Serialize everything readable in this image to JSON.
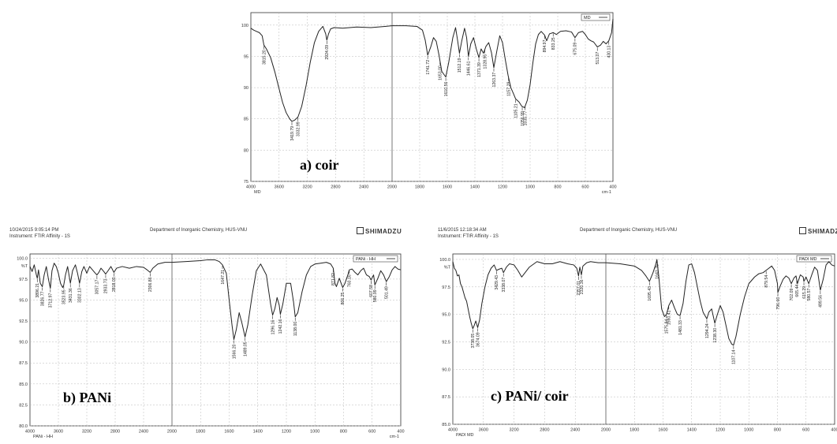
{
  "charts": {
    "a": {
      "legend": "MD",
      "label": "a) coir",
      "axis_left_caption": "",
      "axis_bottom_caption": "cm-1",
      "corner_caption": "MD"
    },
    "b": {
      "timestamp": "10/24/2015 9:05:14 PM",
      "instrument": "Instrument: FTIR Affinity - 1S",
      "department": "Department of Inorganic Chemistry, HUS-VNU",
      "brand": "SHIMADZU",
      "legend": "PANi - HH",
      "label": "b) PANi",
      "axis_left_caption": "%T",
      "axis_bottom_caption": "cm-1",
      "corner_caption": "PANi - HH"
    },
    "c": {
      "timestamp": "11/6/2015 12:18:34 AM",
      "instrument": "Instrument: FTIR Affinity - 1S",
      "department": "Department of Inorganic Chemistry, HUS-VNU",
      "brand": "SHIMADZ",
      "legend": "PADI MD",
      "label": "c) PANi/ coir",
      "axis_left_caption": "%T",
      "axis_bottom_caption": "",
      "corner_caption": "PADI MD"
    }
  },
  "chart_data": [
    {
      "type": "line",
      "xlabel": "cm-1",
      "ylabel": "",
      "xlim": [
        4000,
        400
      ],
      "ylim": [
        75,
        102
      ],
      "x_ticks": [
        4000,
        3600,
        3200,
        2800,
        2400,
        2000,
        1800,
        1600,
        1400,
        1200,
        1000,
        800,
        600,
        400
      ],
      "y_ticks": [
        75,
        80,
        85,
        90,
        95,
        100
      ],
      "y_tick_labels": [
        "75",
        "80",
        "85",
        "90",
        "95",
        "100"
      ],
      "series": [
        {
          "name": "MD",
          "x": [
            4000,
            3960,
            3920,
            3880,
            3840,
            3815,
            3780,
            3720,
            3660,
            3600,
            3550,
            3500,
            3450,
            3420,
            3380,
            3333,
            3280,
            3220,
            3160,
            3100,
            3040,
            2980,
            2940,
            2924,
            2900,
            2870,
            2820,
            2700,
            2500,
            2300,
            2100,
            2000,
            1900,
            1820,
            1780,
            1760,
            1742,
            1720,
            1700,
            1680,
            1660,
            1640,
            1611,
            1590,
            1560,
            1540,
            1525,
            1512,
            1495,
            1475,
            1460,
            1447,
            1430,
            1410,
            1390,
            1371,
            1355,
            1338,
            1320,
            1300,
            1280,
            1263,
            1240,
            1220,
            1200,
            1180,
            1160,
            1140,
            1120,
            1105,
            1080,
            1060,
            1040,
            1020,
            1000,
            980,
            960,
            940,
            920,
            895,
            880,
            860,
            833,
            810,
            780,
            740,
            700,
            675,
            650,
            620,
            600,
            580,
            560,
            540,
            513,
            490,
            470,
            450,
            430,
            410,
            400
          ],
          "y": [
            99.5,
            99.2,
            99.0,
            98.8,
            98.3,
            96.8,
            96.2,
            94.8,
            92.5,
            89.8,
            87.6,
            86.0,
            85.0,
            84.6,
            84.8,
            85.3,
            87.0,
            90.2,
            94.0,
            97.2,
            99.0,
            99.8,
            98.6,
            97.6,
            98.6,
            99.4,
            99.6,
            99.5,
            99.7,
            99.6,
            99.8,
            99.9,
            99.9,
            99.8,
            99.2,
            97.6,
            95.2,
            96.5,
            98.0,
            97.4,
            95.2,
            92.6,
            91.7,
            94.0,
            98.0,
            99.6,
            97.5,
            95.5,
            97.5,
            99.5,
            98.0,
            95.0,
            97.0,
            98.0,
            96.2,
            94.8,
            96.2,
            95.5,
            96.6,
            97.2,
            95.6,
            93.2,
            96.0,
            98.3,
            97.2,
            94.5,
            92.0,
            90.0,
            89.0,
            88.2,
            87.7,
            87.0,
            86.8,
            88.0,
            90.5,
            94.0,
            97.0,
            98.5,
            99.0,
            98.4,
            97.5,
            98.6,
            98.8,
            98.5,
            99.0,
            99.1,
            98.9,
            98.0,
            98.8,
            99.0,
            98.5,
            97.8,
            97.5,
            97.3,
            96.5,
            96.8,
            97.4,
            97.0,
            97.5,
            98.8,
            101.0
          ]
        }
      ]
    },
    {
      "type": "line",
      "xlabel": "cm-1",
      "ylabel": "%T",
      "xlim": [
        4000,
        400
      ],
      "ylim": [
        80,
        100.5
      ],
      "x_ticks": [
        4000,
        3600,
        3200,
        2800,
        2400,
        2000,
        1800,
        1600,
        1400,
        1200,
        1000,
        800,
        600,
        400
      ],
      "y_ticks": [
        80,
        82.5,
        85,
        87.5,
        90,
        92.5,
        95,
        97.5,
        100
      ],
      "y_tick_labels": [
        "80.0",
        "82.5",
        "85.0",
        "87.5",
        "90.0",
        "92.5",
        "95.0",
        "97.5",
        "100.0"
      ],
      "series": [
        {
          "name": "PANi - HH",
          "x": [
            4000,
            3970,
            3940,
            3910,
            3897,
            3880,
            3855,
            3826,
            3800,
            3770,
            3740,
            3713,
            3690,
            3660,
            3630,
            3600,
            3570,
            3540,
            3524,
            3500,
            3470,
            3431,
            3400,
            3360,
            3330,
            3302,
            3270,
            3240,
            3200,
            3160,
            3120,
            3080,
            3057,
            3030,
            3000,
            2960,
            2934,
            2900,
            2860,
            2818,
            2780,
            2700,
            2600,
            2500,
            2400,
            2350,
            2307,
            2270,
            2200,
            2100,
            2000,
            1900,
            1800,
            1750,
            1700,
            1670,
            1647,
            1620,
            1600,
            1580,
            1567,
            1550,
            1530,
            1510,
            1489,
            1470,
            1440,
            1410,
            1380,
            1340,
            1310,
            1296,
            1280,
            1265,
            1250,
            1242,
            1225,
            1200,
            1170,
            1150,
            1138,
            1120,
            1090,
            1060,
            1030,
            1000,
            960,
            920,
            890,
            872,
            860,
            850,
            830,
            806,
            790,
            770,
            760,
            740,
            720,
            700,
            680,
            660,
            640,
            620,
            608,
            590,
            581,
            560,
            540,
            520,
            501,
            480,
            460,
            440,
            420,
            400
          ],
          "y": [
            99.0,
            98.4,
            99.2,
            98.0,
            97.6,
            98.6,
            97.0,
            96.6,
            98.0,
            99.0,
            97.5,
            96.4,
            98.5,
            99.4,
            99.0,
            98.2,
            97.0,
            96.5,
            96.8,
            98.0,
            99.0,
            97.0,
            98.5,
            99.2,
            98.2,
            97.0,
            98.4,
            99.0,
            98.2,
            99.0,
            98.6,
            98.2,
            98.0,
            98.3,
            98.8,
            98.4,
            98.1,
            98.5,
            99.0,
            98.3,
            98.8,
            99.0,
            98.8,
            99.0,
            98.9,
            98.6,
            98.3,
            98.8,
            99.3,
            99.5,
            99.5,
            99.6,
            99.7,
            99.8,
            99.8,
            99.6,
            99.2,
            98.2,
            95.0,
            92.0,
            90.3,
            91.5,
            93.5,
            92.2,
            90.6,
            92.0,
            95.5,
            98.5,
            99.3,
            98.0,
            94.5,
            93.2,
            94.0,
            95.3,
            94.4,
            93.3,
            94.5,
            97.0,
            97.0,
            94.8,
            93.0,
            93.5,
            96.0,
            98.0,
            99.0,
            99.3,
            99.4,
            99.5,
            99.3,
            98.8,
            97.0,
            96.6,
            97.6,
            96.5,
            97.0,
            98.0,
            98.6,
            98.7,
            98.3,
            98.0,
            98.5,
            98.8,
            98.0,
            97.8,
            97.4,
            98.0,
            96.8,
            97.6,
            98.5,
            98.0,
            97.2,
            97.8,
            98.6,
            99.0,
            98.7,
            98.6
          ]
        }
      ]
    },
    {
      "type": "line",
      "xlabel": "",
      "ylabel": "%T",
      "xlim": [
        4000,
        400
      ],
      "ylim": [
        85,
        100.5
      ],
      "x_ticks": [
        4000,
        3600,
        3200,
        2800,
        2400,
        2000,
        1800,
        1600,
        1400,
        1200,
        1000,
        800,
        600,
        400
      ],
      "y_ticks": [
        85,
        87.5,
        90,
        92.5,
        95,
        97.5,
        100
      ],
      "y_tick_labels": [
        "85.0",
        "87.5",
        "90.0",
        "92.5",
        "95.0",
        "97.5",
        "100.0"
      ],
      "series": [
        {
          "name": "PADI MD",
          "x": [
            4000,
            3980,
            3960,
            3940,
            3920,
            3900,
            3880,
            3860,
            3840,
            3820,
            3800,
            3780,
            3760,
            3739,
            3720,
            3700,
            3675,
            3650,
            3620,
            3580,
            3540,
            3500,
            3460,
            3429,
            3400,
            3360,
            3338,
            3300,
            3260,
            3200,
            3150,
            3100,
            3000,
            2900,
            2800,
            2700,
            2600,
            2500,
            2420,
            2380,
            2357,
            2340,
            2320,
            2300,
            2250,
            2200,
            2100,
            2000,
            1900,
            1800,
            1750,
            1720,
            1695,
            1670,
            1650,
            1643,
            1630,
            1610,
            1590,
            1576,
            1560,
            1540,
            1520,
            1500,
            1481,
            1460,
            1440,
            1420,
            1400,
            1380,
            1360,
            1340,
            1320,
            1294,
            1280,
            1260,
            1238,
            1220,
            1200,
            1180,
            1160,
            1140,
            1120,
            1107,
            1090,
            1060,
            1030,
            1000,
            960,
            930,
            900,
            880,
            860,
            840,
            820,
            800,
            797,
            780,
            760,
            740,
            720,
            703,
            685,
            670,
            660,
            650,
            640,
            620,
            615,
            600,
            581,
            560,
            540,
            520,
            500,
            480,
            460,
            440,
            420,
            400
          ],
          "y": [
            99.8,
            99.2,
            99.0,
            98.5,
            98.6,
            97.8,
            97.5,
            97.0,
            96.5,
            96.2,
            95.5,
            94.8,
            94.2,
            93.7,
            94.0,
            94.4,
            93.8,
            94.5,
            96.0,
            97.5,
            98.6,
            99.2,
            99.5,
            99.0,
            99.1,
            99.2,
            98.8,
            99.3,
            99.6,
            99.5,
            99.0,
            98.4,
            99.3,
            99.8,
            99.6,
            99.6,
            99.8,
            99.6,
            99.5,
            99.2,
            98.5,
            99.3,
            98.6,
            99.4,
            99.7,
            99.8,
            99.7,
            99.7,
            99.6,
            99.4,
            99.0,
            98.5,
            98.0,
            98.8,
            99.6,
            100.0,
            98.5,
            95.5,
            94.8,
            95.0,
            95.8,
            96.3,
            95.6,
            95.0,
            94.9,
            96.0,
            98.0,
            99.5,
            99.6,
            98.8,
            97.5,
            96.2,
            95.2,
            94.6,
            95.2,
            95.5,
            94.2,
            95.0,
            95.8,
            95.2,
            94.0,
            92.8,
            92.3,
            92.2,
            93.0,
            95.0,
            96.6,
            97.8,
            98.4,
            98.7,
            98.8,
            99.0,
            99.2,
            99.4,
            99.0,
            97.8,
            97.0,
            97.6,
            98.2,
            98.5,
            98.3,
            97.8,
            98.3,
            98.5,
            97.8,
            98.2,
            98.6,
            98.4,
            98.0,
            98.4,
            97.8,
            98.6,
            99.3,
            99.0,
            97.2,
            98.2,
            99.5,
            99.8,
            99.5,
            99.4
          ]
        }
      ]
    }
  ],
  "peak_labels": {
    "a": [
      {
        "wn": 3815,
        "text": "3815.20"
      },
      {
        "wn": 3419,
        "text": "3419.79"
      },
      {
        "wn": 3333,
        "text": "3332.99"
      },
      {
        "wn": 2924,
        "text": "2924.09"
      },
      {
        "wn": 1742,
        "text": "1741.72"
      },
      {
        "wn": 1653,
        "text": "1653.00"
      },
      {
        "wn": 1611,
        "text": "1610.56"
      },
      {
        "wn": 1512,
        "text": "1512.19"
      },
      {
        "wn": 1447,
        "text": "1446.61"
      },
      {
        "wn": 1371,
        "text": "1371.39"
      },
      {
        "wn": 1328,
        "text": "1328.95"
      },
      {
        "wn": 1263,
        "text": "1263.37"
      },
      {
        "wn": 1157,
        "text": "1157.29"
      },
      {
        "wn": 1105,
        "text": "1105.21"
      },
      {
        "wn": 1057,
        "text": "1056.99"
      },
      {
        "wn": 1036,
        "text": "1035.77"
      },
      {
        "wn": 895,
        "text": "894.97"
      },
      {
        "wn": 833,
        "text": "833.25"
      },
      {
        "wn": 675,
        "text": "675.09"
      },
      {
        "wn": 513,
        "text": "513.07"
      },
      {
        "wn": 430,
        "text": "430.13"
      }
    ],
    "b": [
      {
        "wn": 3897,
        "text": "3896.21"
      },
      {
        "wn": 3826,
        "text": "3826.77"
      },
      {
        "wn": 3713,
        "text": "3712.97"
      },
      {
        "wn": 3524,
        "text": "3523.95"
      },
      {
        "wn": 3431,
        "text": "3431.36"
      },
      {
        "wn": 3302,
        "text": "3302.13"
      },
      {
        "wn": 3057,
        "text": "3057.17"
      },
      {
        "wn": 2934,
        "text": "2933.73"
      },
      {
        "wn": 2818,
        "text": "2818.00"
      },
      {
        "wn": 2307,
        "text": "2306.86"
      },
      {
        "wn": 1647,
        "text": "1647.21"
      },
      {
        "wn": 1567,
        "text": "1566.20"
      },
      {
        "wn": 1489,
        "text": "1489.05"
      },
      {
        "wn": 1296,
        "text": "1296.16"
      },
      {
        "wn": 1242,
        "text": "1242.16"
      },
      {
        "wn": 1138,
        "text": "1138.00"
      },
      {
        "wn": 872,
        "text": "871.82"
      },
      {
        "wn": 806,
        "text": "806.25"
      },
      {
        "wn": 760,
        "text": "760.16"
      },
      {
        "wn": 608,
        "text": "607.58"
      },
      {
        "wn": 581,
        "text": "580.99"
      },
      {
        "wn": 501,
        "text": "501.49"
      }
    ],
    "c": [
      {
        "wn": 3739,
        "text": "3738.05"
      },
      {
        "wn": 3675,
        "text": "3674.09"
      },
      {
        "wn": 3429,
        "text": "3429.43"
      },
      {
        "wn": 3338,
        "text": "3338.07"
      },
      {
        "wn": 2357,
        "text": "2357.01"
      },
      {
        "wn": 2320,
        "text": "2320.36"
      },
      {
        "wn": 1695,
        "text": "1695.43"
      },
      {
        "wn": 1643,
        "text": "1643.35"
      },
      {
        "wn": 1576,
        "text": "1575.84"
      },
      {
        "wn": 1560,
        "text": "1560.41"
      },
      {
        "wn": 1481,
        "text": "1481.33"
      },
      {
        "wn": 1294,
        "text": "1294.24"
      },
      {
        "wn": 1238,
        "text": "1238.30"
      },
      {
        "wn": 1107,
        "text": "1107.14"
      },
      {
        "wn": 879,
        "text": "879.54"
      },
      {
        "wn": 797,
        "text": "796.60"
      },
      {
        "wn": 703,
        "text": "702.09"
      },
      {
        "wn": 665,
        "text": "665.44"
      },
      {
        "wn": 615,
        "text": "615.29"
      },
      {
        "wn": 581,
        "text": "580.57"
      },
      {
        "wn": 500,
        "text": "499.56"
      }
    ]
  },
  "colors": {
    "trace": "#222222",
    "grid": "#b8b8b8",
    "frame": "#333333",
    "label": "#000000"
  }
}
